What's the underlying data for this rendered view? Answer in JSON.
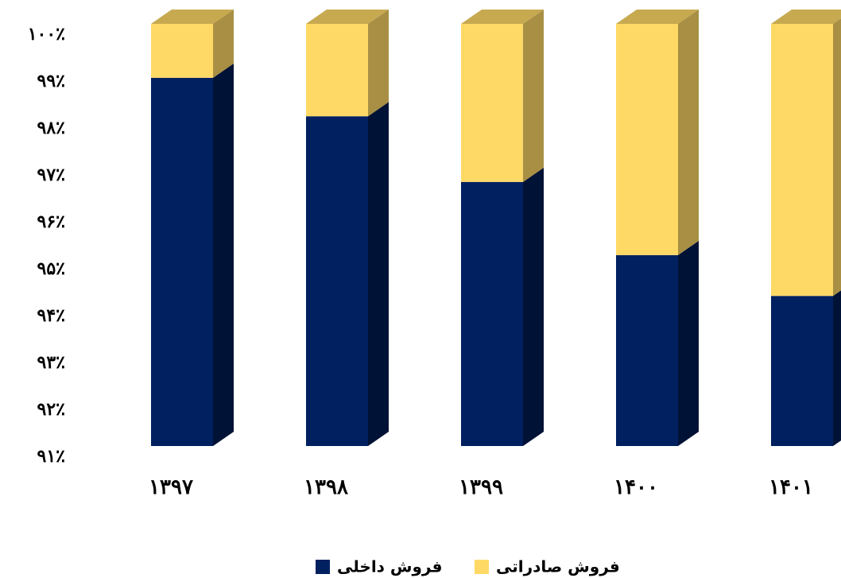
{
  "chart_data": {
    "type": "stacked_bar_3d",
    "categories": [
      "۱۳۹۷",
      "۱۳۹۸",
      "۱۳۹۹",
      "۱۴۰۰",
      "۱۴۰۱"
    ],
    "series": [
      {
        "name": "فروش داخلی",
        "color": "#002060",
        "values": [
          98.85,
          98.03,
          96.63,
          95.07,
          94.2
        ]
      },
      {
        "name": "فروش صادراتی",
        "color": "#ffd966",
        "values": [
          1.15,
          1.97,
          3.37,
          4.93,
          5.8
        ]
      }
    ],
    "ylim": [
      91,
      100
    ],
    "yticks": [
      {
        "value": 91,
        "label": "۹۱٪"
      },
      {
        "value": 92,
        "label": "۹۲٪"
      },
      {
        "value": 93,
        "label": "۹۳٪"
      },
      {
        "value": 94,
        "label": "۹۴٪"
      },
      {
        "value": 95,
        "label": "۹۵٪"
      },
      {
        "value": 96,
        "label": "۹۶٪"
      },
      {
        "value": 97,
        "label": "۹۷٪"
      },
      {
        "value": 98,
        "label": "۹۸٪"
      },
      {
        "value": 99,
        "label": "۹۹٪"
      },
      {
        "value": 100,
        "label": "۱۰۰٪"
      }
    ],
    "grid": false
  }
}
